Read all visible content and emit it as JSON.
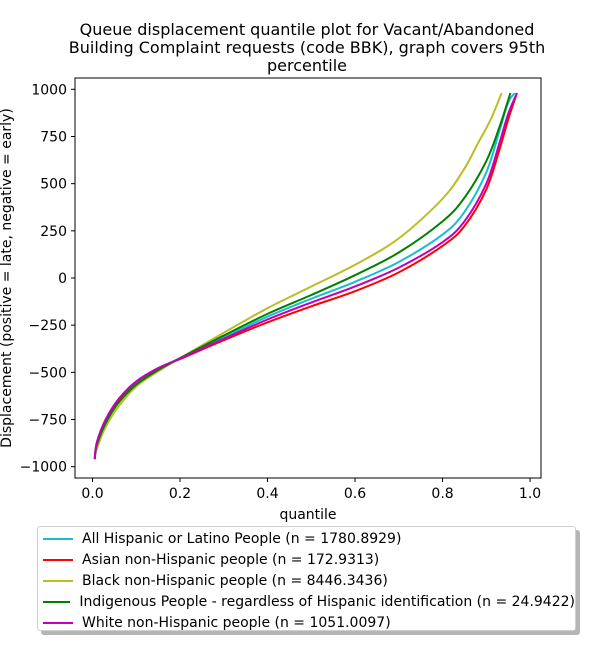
{
  "chart_data": {
    "type": "line",
    "title_lines": [
      "Queue displacement quantile plot for Vacant/Abandoned",
      "Building Complaint  requests (code BBK), graph covers 95th",
      "percentile"
    ],
    "xlabel": "quantile",
    "ylabel": "Displacement (positive = late, negative = early)",
    "xlim": [
      -0.04,
      1.025
    ],
    "ylim": [
      -1060,
      1060
    ],
    "xticks": [
      0.0,
      0.2,
      0.4,
      0.6,
      0.8,
      1.0
    ],
    "xtick_labels": [
      "0.0",
      "0.2",
      "0.4",
      "0.6",
      "0.8",
      "1.0"
    ],
    "yticks": [
      -1000,
      -750,
      -500,
      -250,
      0,
      250,
      500,
      750,
      1000
    ],
    "ytick_labels": [
      "−1000",
      "−750",
      "−500",
      "−250",
      "0",
      "250",
      "500",
      "750",
      "1000"
    ],
    "grid": false,
    "legend_position": "below",
    "series": [
      {
        "name": "All Hispanic or Latino People (n = 1780.8929)",
        "color": "#17becf",
        "x": [
          0.005,
          0.01,
          0.03,
          0.06,
          0.1,
          0.15,
          0.2,
          0.3,
          0.4,
          0.5,
          0.6,
          0.7,
          0.8,
          0.85,
          0.9,
          0.93,
          0.95,
          0.965
        ],
        "y": [
          -960,
          -880,
          -760,
          -650,
          -555,
          -480,
          -425,
          -315,
          -205,
          -110,
          -20,
          85,
          230,
          350,
          560,
          780,
          930,
          980
        ]
      },
      {
        "name": "Asian non-Hispanic people (n = 172.9313)",
        "color": "#ff0000",
        "x": [
          0.005,
          0.01,
          0.03,
          0.06,
          0.1,
          0.15,
          0.2,
          0.3,
          0.4,
          0.5,
          0.6,
          0.7,
          0.8,
          0.85,
          0.9,
          0.93,
          0.95,
          0.97
        ],
        "y": [
          -960,
          -875,
          -755,
          -645,
          -550,
          -478,
          -430,
          -330,
          -235,
          -150,
          -70,
          30,
          170,
          275,
          470,
          680,
          840,
          980
        ]
      },
      {
        "name": "Black non-Hispanic people (n = 8446.3436)",
        "color": "#bcbd22",
        "x": [
          0.005,
          0.01,
          0.03,
          0.06,
          0.1,
          0.15,
          0.2,
          0.3,
          0.4,
          0.5,
          0.6,
          0.7,
          0.8,
          0.85,
          0.88,
          0.91,
          0.935
        ],
        "y": [
          -960,
          -905,
          -790,
          -680,
          -575,
          -495,
          -425,
          -290,
          -160,
          -45,
          70,
          210,
          420,
          580,
          710,
          840,
          980
        ]
      },
      {
        "name": "Indigenous People - regardless of Hispanic identification (n = 24.9422)",
        "color": "#008000",
        "x": [
          0.005,
          0.01,
          0.03,
          0.06,
          0.1,
          0.15,
          0.2,
          0.3,
          0.4,
          0.5,
          0.6,
          0.7,
          0.8,
          0.85,
          0.9,
          0.93,
          0.955
        ],
        "y": [
          -960,
          -885,
          -770,
          -660,
          -565,
          -488,
          -425,
          -305,
          -190,
          -90,
          15,
          135,
          300,
          425,
          620,
          800,
          980
        ]
      },
      {
        "name": "White non-Hispanic people (n = 1051.0097)",
        "color": "#bf00bf",
        "x": [
          0.005,
          0.01,
          0.03,
          0.06,
          0.1,
          0.15,
          0.2,
          0.3,
          0.4,
          0.5,
          0.6,
          0.7,
          0.8,
          0.85,
          0.9,
          0.93,
          0.95,
          0.97
        ],
        "y": [
          -960,
          -870,
          -750,
          -640,
          -548,
          -478,
          -428,
          -322,
          -220,
          -130,
          -45,
          55,
          190,
          300,
          500,
          715,
          870,
          980
        ]
      }
    ]
  }
}
